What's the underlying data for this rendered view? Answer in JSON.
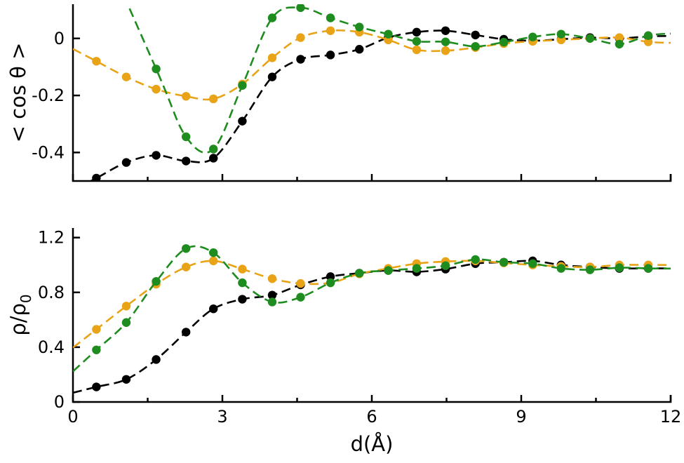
{
  "chart_data": [
    {
      "type": "line",
      "ylabel": "< cos θ >",
      "xlabel": "",
      "xlim": [
        0,
        12
      ],
      "ylim": [
        -0.5,
        0.12
      ],
      "xticks": [
        "0",
        "3",
        "6",
        "9",
        "12"
      ],
      "yticks": [
        {
          "value": 0,
          "label": "0"
        },
        {
          "value": -0.2,
          "label": "-0.2"
        },
        {
          "value": -0.4,
          "label": "-0.4"
        }
      ],
      "line_style": "dashed with circle markers",
      "grid": false,
      "series": [
        {
          "color": "#000000",
          "x": [
            0.47,
            1.07,
            1.67,
            2.27,
            2.82,
            3.4,
            4.0,
            4.57,
            5.17,
            5.75,
            6.33,
            6.9,
            7.48,
            8.08,
            8.65,
            9.23,
            9.8,
            10.38,
            10.97,
            11.55
          ],
          "y": [
            -0.49,
            -0.435,
            -0.41,
            -0.43,
            -0.42,
            -0.29,
            -0.135,
            -0.073,
            -0.058,
            -0.038,
            0.003,
            0.022,
            0.027,
            0.012,
            -0.003,
            -0.008,
            -0.003,
            0.003,
            0.0,
            0.007
          ]
        },
        {
          "color": "#E8A317",
          "x": [
            0.47,
            1.07,
            1.67,
            2.27,
            2.82,
            3.4,
            4.0,
            4.57,
            5.17,
            5.75,
            6.33,
            6.9,
            7.48,
            8.08,
            8.65,
            9.23,
            9.8,
            10.38,
            10.97,
            11.55
          ],
          "y": [
            -0.08,
            -0.135,
            -0.178,
            -0.203,
            -0.212,
            -0.16,
            -0.068,
            0.003,
            0.027,
            0.022,
            -0.005,
            -0.04,
            -0.043,
            -0.032,
            -0.018,
            -0.01,
            -0.005,
            0.0,
            0.003,
            -0.012
          ]
        },
        {
          "color": "#1E8C1E",
          "x": [
            1.67,
            2.27,
            2.82,
            3.4,
            4.0,
            4.57,
            5.17,
            5.75,
            6.33,
            6.9,
            7.48,
            8.08,
            8.65,
            9.23,
            9.8,
            10.38,
            10.97,
            11.55
          ],
          "y": [
            -0.107,
            -0.345,
            -0.388,
            -0.165,
            0.072,
            0.108,
            0.072,
            0.04,
            0.015,
            -0.01,
            -0.012,
            -0.028,
            -0.013,
            0.005,
            0.015,
            0.0,
            -0.02,
            0.01
          ]
        }
      ]
    },
    {
      "type": "line",
      "ylabel": "ρ/ρ",
      "ylabel_sub": "0",
      "xlabel": "d(Å)",
      "xlim": [
        0,
        12
      ],
      "ylim": [
        0,
        1.27
      ],
      "xticks": [
        "0",
        "3",
        "6",
        "9",
        "12"
      ],
      "yticks": [
        {
          "value": 0,
          "label": "0"
        },
        {
          "value": 0.4,
          "label": "0.4"
        },
        {
          "value": 0.8,
          "label": "0.8"
        },
        {
          "value": 1.2,
          "label": "1.2"
        }
      ],
      "line_style": "dashed with circle markers",
      "grid": false,
      "series": [
        {
          "color": "#000000",
          "x": [
            0.47,
            1.07,
            1.67,
            2.27,
            2.82,
            3.4,
            4.0,
            4.57,
            5.17,
            5.75,
            6.33,
            6.9,
            7.48,
            8.08,
            8.65,
            9.23,
            9.8,
            10.38,
            10.97,
            11.55
          ],
          "y": [
            0.11,
            0.165,
            0.31,
            0.51,
            0.68,
            0.75,
            0.78,
            0.855,
            0.915,
            0.94,
            0.96,
            0.95,
            0.97,
            1.01,
            1.02,
            1.03,
            1.0,
            0.985,
            0.975,
            0.975
          ]
        },
        {
          "color": "#E8A317",
          "x": [
            0.47,
            1.07,
            1.67,
            2.27,
            2.82,
            3.4,
            4.0,
            4.57,
            5.17,
            5.75,
            6.33,
            6.9,
            7.48,
            8.08,
            8.65,
            9.23,
            9.8,
            10.38,
            10.97,
            11.55
          ],
          "y": [
            0.53,
            0.7,
            0.86,
            0.985,
            1.03,
            0.97,
            0.9,
            0.865,
            0.87,
            0.935,
            0.975,
            1.01,
            1.025,
            1.03,
            1.015,
            1.0,
            0.99,
            0.985,
            1.0,
            1.0
          ]
        },
        {
          "color": "#1E8C1E",
          "x": [
            0.47,
            1.07,
            1.67,
            2.27,
            2.82,
            3.4,
            4.0,
            4.57,
            5.17,
            5.75,
            6.33,
            6.9,
            7.48,
            8.08,
            8.65,
            9.23,
            9.8,
            10.38,
            10.97,
            11.55
          ],
          "y": [
            0.38,
            0.58,
            0.88,
            1.12,
            1.09,
            0.87,
            0.73,
            0.765,
            0.87,
            0.94,
            0.96,
            0.975,
            0.995,
            1.04,
            1.02,
            1.01,
            0.975,
            0.965,
            0.98,
            0.975
          ]
        }
      ]
    }
  ]
}
